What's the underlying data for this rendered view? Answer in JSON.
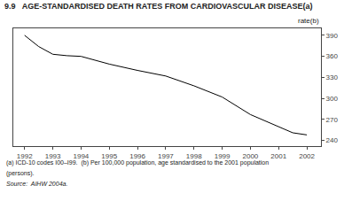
{
  "chart_data": {
    "type": "line",
    "title": "9.9   AGE-STANDARDISED DEATH RATES FROM CARDIOVASCULAR DISEASE(a)",
    "ylabel": "rate(b)",
    "x": [
      1992,
      1992.5,
      1993,
      1993.5,
      1994,
      1995,
      1996,
      1997,
      1998,
      1999,
      2000,
      2001,
      2001.5,
      2002
    ],
    "values": [
      390,
      374,
      363,
      361,
      360,
      349,
      340,
      332,
      318,
      302,
      277,
      259,
      251,
      248
    ],
    "color": "#000000",
    "xlim": [
      1991.6,
      2002.5
    ],
    "xticks": [
      1992,
      1993,
      1994,
      1995,
      1996,
      1997,
      1998,
      1999,
      2000,
      2001,
      2002
    ],
    "ylim": [
      232,
      400
    ],
    "yticks": [
      240,
      270,
      300,
      330,
      360,
      390
    ],
    "grid": false,
    "annotations": [
      "(a) ICD-10 codes I00–I99.  (b) Per 100,000 population, age standardised to the 2001 population",
      "(persons).",
      "Source:  AIHW 2004a."
    ]
  }
}
